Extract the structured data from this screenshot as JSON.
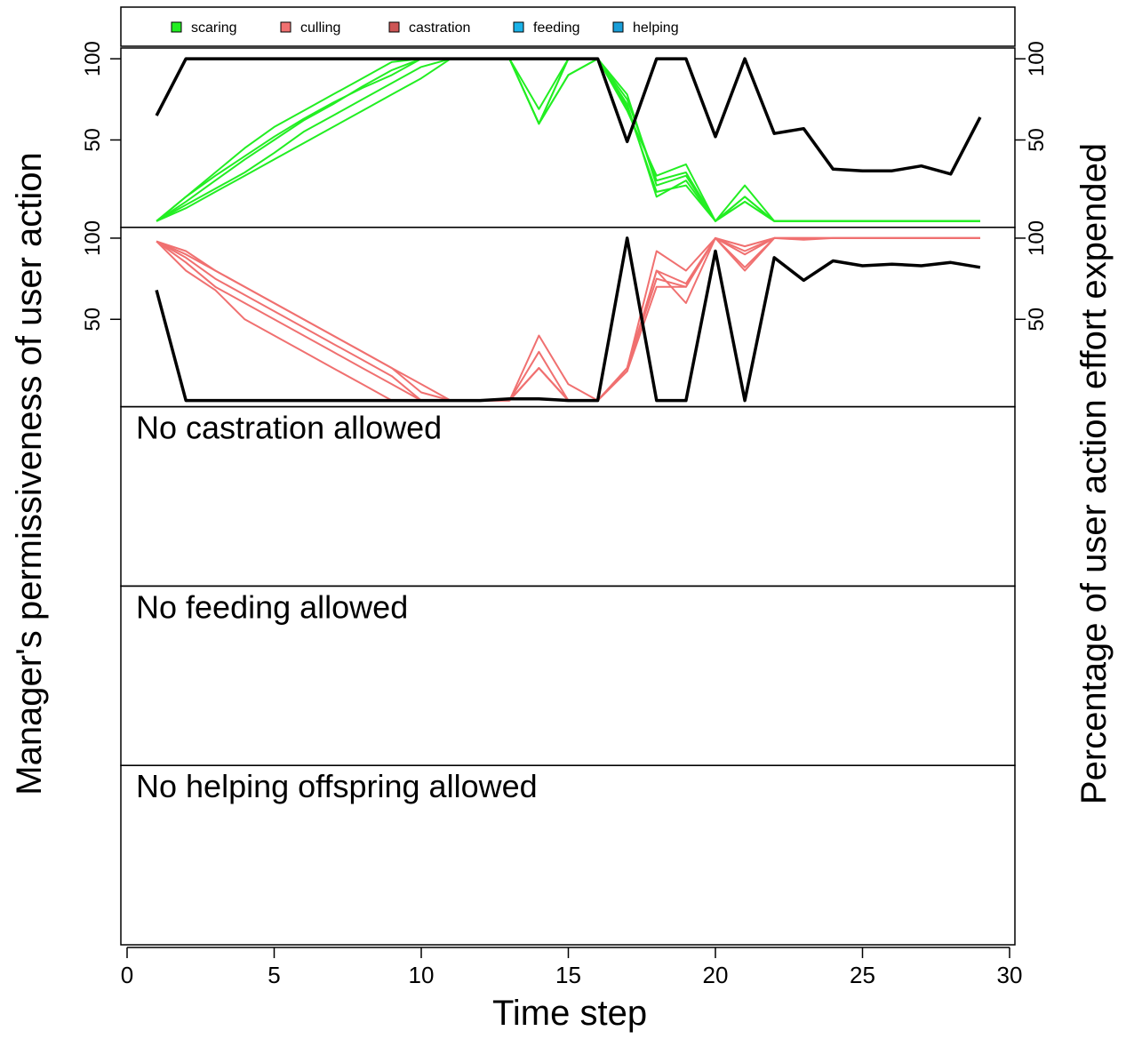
{
  "chart_data": {
    "type": "line",
    "xlabel": "Time step",
    "ylabel_left": "Manager's permissiveness of user action",
    "ylabel_right": "Percentage of user action effort expended",
    "xlim": [
      0,
      30
    ],
    "xticks": [
      0,
      5,
      10,
      15,
      20,
      25,
      30
    ],
    "legend": {
      "placement": "top",
      "items": [
        {
          "label": "scaring",
          "color": "#22ee22"
        },
        {
          "label": "culling",
          "color": "#f07070"
        },
        {
          "label": "castration",
          "color": "#cd5555"
        },
        {
          "label": "feeding",
          "color": "#1ab2e8"
        },
        {
          "label": "helping",
          "color": "#1a9ed8"
        }
      ]
    },
    "panels": [
      {
        "action": "scaring",
        "color": "#22ee22",
        "ylim": [
          0,
          105
        ],
        "yticks": [
          50,
          100
        ],
        "cost_line": {
          "name": "permissiveness",
          "color": "#000000",
          "x": [
            1,
            2,
            3,
            4,
            5,
            6,
            7,
            8,
            9,
            10,
            11,
            12,
            13,
            14,
            15,
            16,
            17,
            18,
            19,
            20,
            21,
            22,
            23,
            24,
            25,
            26,
            27,
            28,
            29
          ],
          "y": [
            65,
            100,
            100,
            100,
            100,
            100,
            100,
            100,
            100,
            100,
            100,
            100,
            100,
            100,
            100,
            100,
            49,
            100,
            100,
            52,
            100,
            54,
            57,
            32,
            31,
            31,
            34,
            29,
            64
          ]
        },
        "series": [
          {
            "x": [
              1,
              2,
              3,
              4,
              5,
              6,
              7,
              8,
              9,
              10,
              11,
              12,
              13,
              14,
              15,
              16,
              17,
              18,
              19,
              20,
              21,
              22,
              23,
              24,
              25,
              26,
              27,
              28,
              29
            ],
            "y": [
              0,
              15,
              30,
              45,
              58,
              68,
              78,
              88,
              98,
              100,
              100,
              100,
              100,
              69,
              100,
              100,
              78,
              22,
              28,
              0,
              15,
              0,
              0,
              0,
              0,
              0,
              0,
              0,
              0
            ]
          },
          {
            "x": [
              1,
              2,
              3,
              4,
              5,
              6,
              7,
              8,
              9,
              10,
              11,
              12,
              13,
              14,
              15,
              16,
              17,
              18,
              19,
              20,
              21,
              22,
              23,
              24,
              25,
              26,
              27,
              28,
              29
            ],
            "y": [
              0,
              12,
              25,
              38,
              50,
              62,
              72,
              83,
              93,
              100,
              100,
              100,
              100,
              60,
              90,
              100,
              75,
              25,
              30,
              0,
              12,
              0,
              0,
              0,
              0,
              0,
              0,
              0,
              0
            ]
          },
          {
            "x": [
              1,
              2,
              3,
              4,
              5,
              6,
              7,
              8,
              9,
              10,
              11,
              12,
              13,
              14,
              15,
              16,
              17,
              18,
              19,
              20,
              21,
              22,
              23,
              24,
              25,
              26,
              27,
              28,
              29
            ],
            "y": [
              0,
              10,
              20,
              30,
              42,
              55,
              65,
              75,
              85,
              95,
              100,
              100,
              100,
              60,
              100,
              100,
              72,
              15,
              25,
              0,
              12,
              0,
              0,
              0,
              0,
              0,
              0,
              0,
              0
            ]
          },
          {
            "x": [
              1,
              2,
              3,
              4,
              5,
              6,
              7,
              8,
              9,
              10,
              11,
              12,
              13,
              14,
              15,
              16,
              17,
              18,
              19,
              20,
              21,
              22,
              23,
              24,
              25,
              26,
              27,
              28,
              29
            ],
            "y": [
              0,
              8,
              18,
              28,
              38,
              48,
              58,
              68,
              78,
              88,
              100,
              100,
              100,
              60,
              100,
              100,
              70,
              18,
              22,
              0,
              15,
              0,
              0,
              0,
              0,
              0,
              0,
              0,
              0
            ]
          },
          {
            "x": [
              1,
              2,
              3,
              4,
              5,
              6,
              7,
              8,
              9,
              10,
              11,
              12,
              13,
              14,
              15,
              16,
              17,
              18,
              19,
              20,
              21,
              22,
              23,
              24,
              25,
              26,
              27,
              28,
              29
            ],
            "y": [
              0,
              15,
              28,
              40,
              52,
              63,
              73,
              82,
              90,
              100,
              100,
              100,
              100,
              60,
              90,
              100,
              68,
              28,
              35,
              0,
              22,
              0,
              0,
              0,
              0,
              0,
              0,
              0,
              0
            ]
          }
        ]
      },
      {
        "action": "culling",
        "color": "#f07070",
        "ylim": [
          0,
          105
        ],
        "yticks": [
          50,
          100
        ],
        "cost_line": {
          "name": "permissiveness",
          "color": "#000000",
          "x": [
            1,
            2,
            3,
            4,
            5,
            6,
            7,
            8,
            9,
            10,
            11,
            12,
            13,
            14,
            15,
            16,
            17,
            18,
            19,
            20,
            21,
            22,
            23,
            24,
            25,
            26,
            27,
            28,
            29
          ],
          "y": [
            68,
            0,
            0,
            0,
            0,
            0,
            0,
            0,
            0,
            0,
            0,
            0,
            1,
            1,
            0,
            0,
            100,
            0,
            0,
            92,
            0,
            88,
            74,
            86,
            83,
            84,
            83,
            85,
            82
          ]
        },
        "series": [
          {
            "x": [
              1,
              2,
              3,
              4,
              5,
              6,
              7,
              8,
              9,
              10,
              11,
              12,
              13,
              14,
              15,
              16,
              17,
              18,
              19,
              20,
              21,
              22,
              23,
              24,
              25,
              26,
              27,
              28,
              29
            ],
            "y": [
              98,
              92,
              80,
              70,
              60,
              50,
              40,
              30,
              20,
              10,
              0,
              0,
              0,
              40,
              10,
              0,
              20,
              92,
              80,
              100,
              92,
              100,
              100,
              100,
              100,
              100,
              100,
              100,
              100
            ]
          },
          {
            "x": [
              1,
              2,
              3,
              4,
              5,
              6,
              7,
              8,
              9,
              10,
              11,
              12,
              13,
              14,
              15,
              16,
              17,
              18,
              19,
              20,
              21,
              22,
              23,
              24,
              25,
              26,
              27,
              28,
              29
            ],
            "y": [
              98,
              90,
              80,
              70,
              60,
              50,
              40,
              30,
              20,
              5,
              0,
              0,
              0,
              30,
              0,
              0,
              20,
              80,
              72,
              100,
              95,
              100,
              100,
              100,
              100,
              100,
              100,
              100,
              100
            ]
          },
          {
            "x": [
              1,
              2,
              3,
              4,
              5,
              6,
              7,
              8,
              9,
              10,
              11,
              12,
              13,
              14,
              15,
              16,
              17,
              18,
              19,
              20,
              21,
              22,
              23,
              24,
              25,
              26,
              27,
              28,
              29
            ],
            "y": [
              98,
              88,
              75,
              65,
              55,
              45,
              35,
              25,
              15,
              0,
              0,
              0,
              0,
              20,
              0,
              0,
              20,
              75,
              70,
              100,
              90,
              100,
              100,
              100,
              100,
              100,
              100,
              100,
              100
            ]
          },
          {
            "x": [
              1,
              2,
              3,
              4,
              5,
              6,
              7,
              8,
              9,
              10,
              11,
              12,
              13,
              14,
              15,
              16,
              17,
              18,
              19,
              20,
              21,
              22,
              23,
              24,
              25,
              26,
              27,
              28,
              29
            ],
            "y": [
              98,
              85,
              70,
              60,
              50,
              40,
              30,
              20,
              10,
              0,
              0,
              0,
              0,
              20,
              0,
              0,
              18,
              70,
              70,
              100,
              82,
              100,
              99,
              100,
              100,
              100,
              100,
              100,
              100
            ]
          },
          {
            "x": [
              1,
              2,
              3,
              4,
              5,
              6,
              7,
              8,
              9,
              10,
              11,
              12,
              13,
              14,
              15,
              16,
              17,
              18,
              19,
              20,
              21,
              22,
              23,
              24,
              25,
              26,
              27,
              28,
              29
            ],
            "y": [
              98,
              80,
              68,
              50,
              40,
              30,
              20,
              10,
              0,
              0,
              0,
              0,
              0,
              20,
              0,
              0,
              18,
              80,
              60,
              100,
              80,
              100,
              100,
              100,
              100,
              100,
              100,
              100,
              100
            ]
          }
        ]
      },
      {
        "action": "castration",
        "message": "No castration allowed"
      },
      {
        "action": "feeding",
        "message": "No feeding allowed"
      },
      {
        "action": "helping",
        "message": "No helping offspring allowed"
      }
    ]
  }
}
